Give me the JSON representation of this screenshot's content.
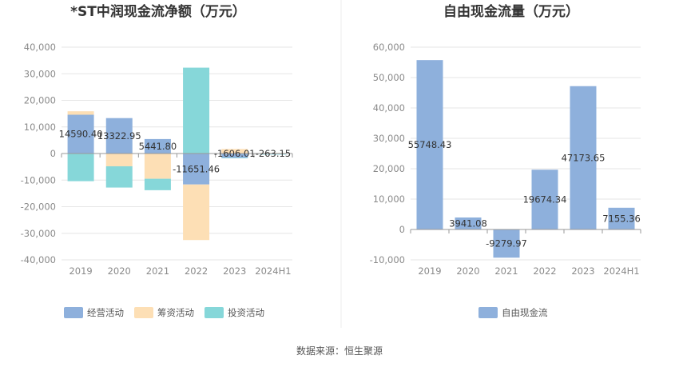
{
  "colors": {
    "operating": "#8eb0dc",
    "financing": "#fddfb5",
    "investing": "#86d7d9",
    "free_cash": "#8eb0dc",
    "grid": "#e6e6e6",
    "axis": "#999999",
    "text": "#333333"
  },
  "source": "数据来源：恒生聚源",
  "chart_data": [
    {
      "type": "bar",
      "stacked": true,
      "title": "*ST中润现金流净额（万元）",
      "categories": [
        "2019",
        "2020",
        "2021",
        "2022",
        "2023",
        "2024H1"
      ],
      "ylim": [
        -40000,
        40000
      ],
      "yticks": [
        -40000,
        -30000,
        -20000,
        -10000,
        0,
        10000,
        20000,
        30000,
        40000
      ],
      "ytick_labels": [
        "-40,000",
        "-30,000",
        "-20,000",
        "-10,000",
        "0",
        "10,000",
        "20,000",
        "30,000",
        "40,000"
      ],
      "series": [
        {
          "name": "经营活动",
          "color_key": "operating",
          "values": [
            14590.4,
            13322.95,
            5441.8,
            -11651.46,
            -1606.01,
            -263.15
          ]
        },
        {
          "name": "筹资活动",
          "color_key": "financing",
          "values": [
            1300,
            -4800,
            -9500,
            -20900,
            1700,
            250
          ]
        },
        {
          "name": "投资活动",
          "color_key": "investing",
          "values": [
            -10400,
            -8000,
            -4300,
            32300,
            -200,
            -150
          ]
        }
      ],
      "labels": [
        "14590.40",
        "13322.95",
        "5441.80",
        "-11651.46",
        "-1606.01",
        "-263.15"
      ],
      "label_series": "经营活动",
      "legend_position": "bottom"
    },
    {
      "type": "bar",
      "title": "自由现金流量（万元）",
      "categories": [
        "2019",
        "2020",
        "2021",
        "2022",
        "2023",
        "2024H1"
      ],
      "ylim": [
        -10000,
        60000
      ],
      "yticks": [
        -10000,
        0,
        10000,
        20000,
        30000,
        40000,
        50000,
        60000
      ],
      "ytick_labels": [
        "-10,000",
        "0",
        "10,000",
        "20,000",
        "30,000",
        "40,000",
        "50,000",
        "60,000"
      ],
      "series": [
        {
          "name": "自由现金流",
          "color_key": "free_cash",
          "values": [
            55748.43,
            3941.08,
            -9279.97,
            19674.34,
            47173.65,
            7155.36
          ]
        }
      ],
      "labels": [
        "55748.43",
        "3941.08",
        "-9279.97",
        "19674.34",
        "47173.65",
        "7155.36"
      ],
      "legend_position": "bottom"
    }
  ]
}
